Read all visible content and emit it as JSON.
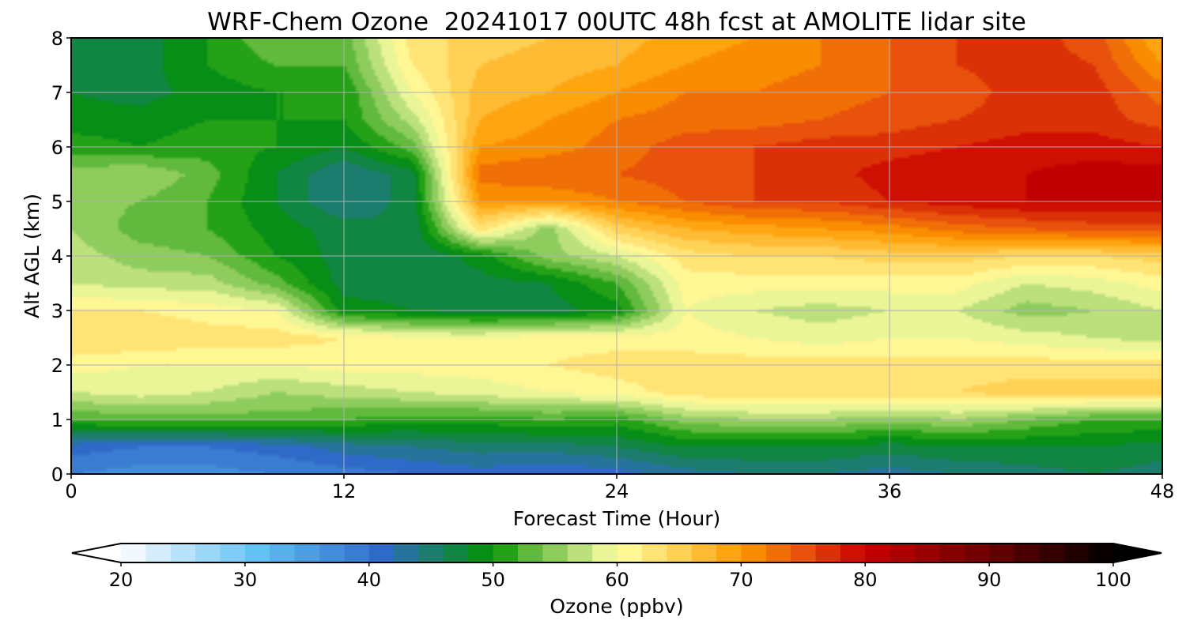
{
  "chart_data": {
    "type": "heatmap",
    "title": "WRF-Chem Ozone  20241017 00UTC 48h fcst at AMOLITE lidar site",
    "xlabel": "Forecast Time (Hour)",
    "ylabel": "Alt AGL (km)",
    "xlim": [
      0,
      48
    ],
    "ylim": [
      0,
      8
    ],
    "xticks": [
      "0",
      "12",
      "24",
      "36",
      "48"
    ],
    "yticks": [
      "0",
      "1",
      "2",
      "3",
      "4",
      "5",
      "6",
      "7",
      "8"
    ],
    "grid": true,
    "x": [
      0,
      3,
      6,
      9,
      12,
      15,
      18,
      21,
      24,
      27,
      30,
      33,
      36,
      39,
      42,
      45,
      48
    ],
    "y": [
      0,
      0.5,
      1,
      1.5,
      2,
      2.5,
      3,
      3.5,
      4,
      4.5,
      5,
      5.5,
      6,
      6.5,
      7,
      7.5,
      8
    ],
    "z": [
      [
        38,
        37,
        37,
        38,
        39,
        40,
        41,
        40,
        41,
        43,
        44,
        44,
        43,
        44,
        45,
        46,
        45
      ],
      [
        41,
        40,
        40,
        41,
        43,
        44,
        45,
        45,
        46,
        48,
        48,
        48,
        47,
        48,
        48,
        48,
        47
      ],
      [
        52,
        53,
        53,
        53,
        52,
        51,
        51,
        52,
        51,
        55,
        56,
        56,
        55,
        56,
        54,
        52,
        52
      ],
      [
        58,
        59,
        58,
        56,
        57,
        58,
        59,
        60,
        61,
        63,
        64,
        64,
        64,
        64,
        65,
        65,
        65
      ],
      [
        61,
        60,
        60,
        60,
        61,
        61,
        61,
        62,
        63,
        63,
        63,
        63,
        63,
        63,
        63,
        63,
        63
      ],
      [
        64,
        64,
        63,
        63,
        62,
        60,
        60,
        61,
        61,
        61,
        60,
        59,
        60,
        60,
        59,
        58,
        57
      ],
      [
        62,
        62,
        61,
        60,
        49,
        48,
        47,
        47,
        49,
        60,
        58,
        57,
        58,
        58,
        55,
        56,
        58
      ],
      [
        58,
        57,
        57,
        53,
        47,
        47,
        47,
        48,
        52,
        61,
        61,
        61,
        61,
        61,
        58,
        59,
        61
      ],
      [
        57,
        55,
        54,
        50,
        47,
        46,
        49,
        55,
        58,
        63,
        64,
        64,
        65,
        65,
        64,
        64,
        65
      ],
      [
        56,
        53,
        52,
        49,
        47,
        46,
        63,
        55,
        65,
        68,
        69,
        70,
        71,
        73,
        74,
        75,
        75
      ],
      [
        55,
        54,
        52,
        48,
        44,
        47,
        70,
        70,
        72,
        74,
        76,
        76,
        78,
        79,
        80,
        80,
        80
      ],
      [
        55,
        56,
        53,
        48,
        44,
        47,
        73,
        74,
        74,
        75,
        76,
        77,
        79,
        80,
        80,
        81,
        81
      ],
      [
        51,
        50,
        51,
        50,
        48,
        53,
        70,
        71,
        73,
        75,
        76,
        77,
        77,
        78,
        79,
        79,
        78
      ],
      [
        49,
        49,
        50,
        50,
        50,
        57,
        68,
        70,
        72,
        73,
        73,
        74,
        75,
        76,
        77,
        77,
        75
      ],
      [
        48,
        47,
        49,
        50,
        50,
        60,
        67,
        68,
        70,
        72,
        72,
        73,
        74,
        75,
        77,
        77,
        73
      ],
      [
        47,
        47,
        50,
        52,
        52,
        62,
        66,
        67,
        68,
        70,
        71,
        72,
        74,
        76,
        77,
        76,
        70
      ],
      [
        48,
        47,
        50,
        54,
        53,
        63,
        65,
        66,
        67,
        69,
        70,
        72,
        74,
        76,
        77,
        75,
        68
      ]
    ],
    "colorbar": {
      "label": "Ozone  (ppbv)",
      "min": 20,
      "max": 100,
      "ticks": [
        "20",
        "30",
        "40",
        "50",
        "60",
        "70",
        "80",
        "90",
        "100"
      ],
      "extend": "both",
      "stops": [
        {
          "v": 20,
          "c": "#ffffff"
        },
        {
          "v": 31,
          "c": "#62c2f4"
        },
        {
          "v": 41,
          "c": "#2f6ac8"
        },
        {
          "v": 45,
          "c": "#1c7d6e"
        },
        {
          "v": 50,
          "c": "#009200"
        },
        {
          "v": 52,
          "c": "#4aaf2e"
        },
        {
          "v": 56,
          "c": "#a6d66e"
        },
        {
          "v": 60,
          "c": "#ffffa4"
        },
        {
          "v": 65,
          "c": "#ffd155"
        },
        {
          "v": 70,
          "c": "#ff9a00"
        },
        {
          "v": 75,
          "c": "#e8520c"
        },
        {
          "v": 80,
          "c": "#c80000"
        },
        {
          "v": 90,
          "c": "#6a0000"
        },
        {
          "v": 100,
          "c": "#000000"
        }
      ]
    }
  }
}
